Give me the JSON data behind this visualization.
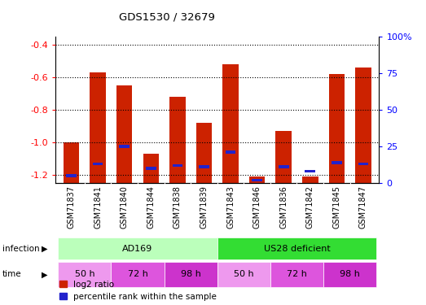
{
  "title": "GDS1530 / 32679",
  "samples": [
    "GSM71837",
    "GSM71841",
    "GSM71840",
    "GSM71844",
    "GSM71838",
    "GSM71839",
    "GSM71843",
    "GSM71846",
    "GSM71836",
    "GSM71842",
    "GSM71845",
    "GSM71847"
  ],
  "log2_ratio": [
    -1.0,
    -0.57,
    -0.65,
    -1.07,
    -0.72,
    -0.88,
    -0.52,
    -1.21,
    -0.93,
    -1.21,
    -0.58,
    -0.54
  ],
  "percentile_rank": [
    5,
    13,
    25,
    10,
    12,
    11,
    21,
    2,
    11,
    8,
    14,
    13
  ],
  "infection_groups": [
    {
      "label": "AD169",
      "start": 0,
      "end": 5,
      "color": "#bbffbb"
    },
    {
      "label": "US28 deficient",
      "start": 6,
      "end": 11,
      "color": "#33dd33"
    }
  ],
  "time_groups": [
    {
      "label": "50 h",
      "start": 0,
      "end": 1,
      "color": "#ee99ee"
    },
    {
      "label": "72 h",
      "start": 2,
      "end": 3,
      "color": "#dd55dd"
    },
    {
      "label": "98 h",
      "start": 4,
      "end": 5,
      "color": "#cc33cc"
    },
    {
      "label": "50 h",
      "start": 6,
      "end": 7,
      "color": "#ee99ee"
    },
    {
      "label": "72 h",
      "start": 8,
      "end": 9,
      "color": "#dd55dd"
    },
    {
      "label": "98 h",
      "start": 10,
      "end": 11,
      "color": "#cc33cc"
    }
  ],
  "ylim": [
    -1.25,
    -0.35
  ],
  "yticks": [
    -1.2,
    -1.0,
    -0.8,
    -0.6,
    -0.4
  ],
  "right_yticks": [
    0,
    25,
    50,
    75,
    100
  ],
  "bar_color": "#cc2200",
  "blue_color": "#2222cc",
  "bar_width": 0.6,
  "gray_bg": "#cccccc",
  "white_bg": "#ffffff"
}
